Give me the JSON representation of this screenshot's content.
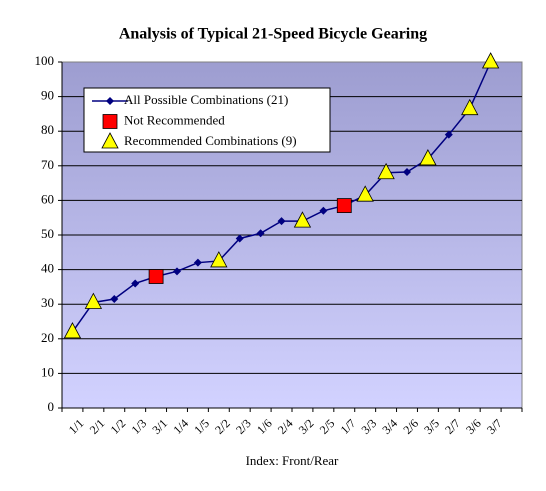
{
  "chart_data": {
    "type": "line",
    "title": "Analysis of Typical 21-Speed Bicycle Gearing",
    "x_label": "Index: Front/Rear",
    "categories": [
      "1/1",
      "2/1",
      "1/2",
      "1/3",
      "3/1",
      "1/4",
      "1/5",
      "2/2",
      "2/3",
      "1/6",
      "2/4",
      "3/2",
      "2/5",
      "1/7",
      "3/3",
      "3/4",
      "2/6",
      "3/5",
      "2/7",
      "3/6",
      "3/7"
    ],
    "series": [
      {
        "name": "All Possible Combinations (21)",
        "color": "#000080",
        "marker": "diamond",
        "line": true,
        "values": [
          22,
          30.5,
          31.5,
          36,
          38,
          39.5,
          42,
          42.5,
          49,
          50.5,
          54,
          54,
          57,
          58.5,
          61.5,
          68,
          68.2,
          72,
          79,
          86.5,
          100
        ]
      },
      {
        "name": "Not Recommended",
        "color": "#ff0000",
        "marker": "square",
        "line": false,
        "values": [
          null,
          null,
          null,
          null,
          38,
          null,
          null,
          null,
          null,
          null,
          null,
          null,
          null,
          58.5,
          null,
          null,
          null,
          null,
          null,
          null,
          null
        ]
      },
      {
        "name": "Recommended Combinations (9)",
        "color": "#ffff00",
        "marker": "triangle",
        "line": false,
        "values": [
          22,
          30.5,
          null,
          null,
          null,
          null,
          null,
          42.5,
          null,
          null,
          null,
          54,
          null,
          null,
          61.5,
          68,
          null,
          72,
          null,
          86.5,
          100
        ]
      }
    ],
    "ylim": [
      0,
      100
    ],
    "yticks": [
      0,
      10,
      20,
      30,
      40,
      50,
      60,
      70,
      80,
      90,
      100
    ],
    "grid": true,
    "legend": "top-left"
  }
}
